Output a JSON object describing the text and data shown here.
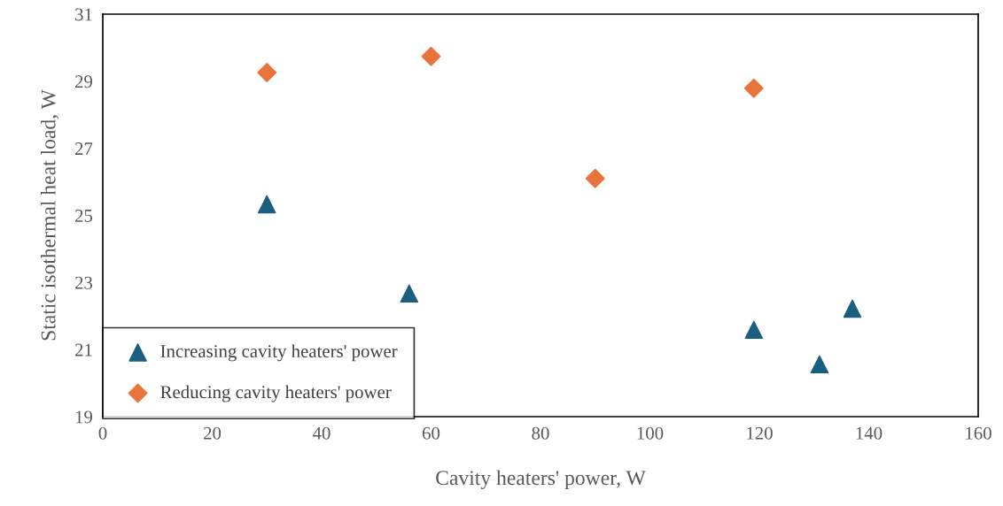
{
  "chart_data": {
    "type": "scatter",
    "xlabel": "Cavity heaters' power, W",
    "ylabel": "Static isothermal heat load, W",
    "xlim": [
      0,
      160
    ],
    "xticks": [
      0,
      20,
      40,
      60,
      80,
      100,
      120,
      140,
      160
    ],
    "ylim": [
      19,
      31
    ],
    "yticks": [
      19,
      21,
      23,
      25,
      27,
      29,
      31
    ],
    "grid": false,
    "legend": "bottom left",
    "series": [
      {
        "name": "Increasing cavity heaters' power",
        "color": "#1a5e80",
        "marker": "triangle",
        "x": [
          30,
          56,
          119,
          131,
          137
        ],
        "values": [
          25.33,
          22.67,
          21.59,
          20.56,
          22.22
        ]
      },
      {
        "name": "Reducing cavity heaters' power",
        "color": "#e8743b",
        "marker": "diamond",
        "x": [
          30,
          60,
          90,
          119
        ],
        "values": [
          29.26,
          29.74,
          26.1,
          28.79
        ]
      }
    ]
  }
}
